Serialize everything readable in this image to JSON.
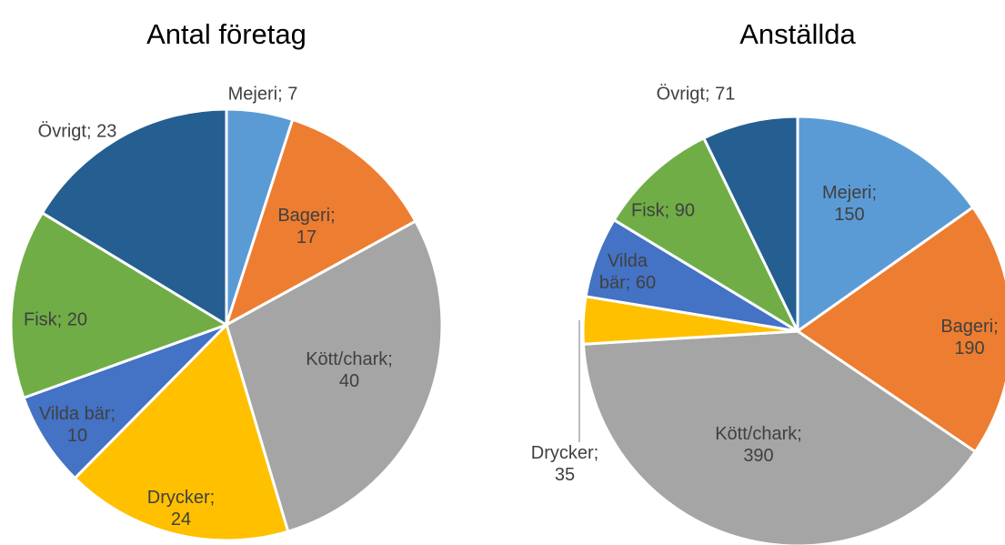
{
  "chart_data": [
    {
      "type": "pie",
      "title": "Antal företag",
      "categories": [
        "Mejeri",
        "Bageri",
        "Kött/chark",
        "Drycker",
        "Vilda bär",
        "Fisk",
        "Övrigt"
      ],
      "values": [
        7,
        17,
        40,
        24,
        10,
        20,
        23
      ],
      "value_labels": [
        "Mejeri; 7",
        "Bageri; 17",
        "Kött/chark; 40",
        "Drycker; 24",
        "Vilda bär; 10",
        "Fisk; 20",
        "Övrigt; 23"
      ],
      "colors": [
        "#5b9bd5",
        "#ed7d31",
        "#a5a5a5",
        "#ffc000",
        "#4472c4",
        "#70ad47",
        "#255e91"
      ]
    },
    {
      "type": "pie",
      "title": "Anställda",
      "categories": [
        "Mejeri",
        "Bageri",
        "Kött/chark",
        "Drycker",
        "Vilda bär",
        "Fisk",
        "Övrigt"
      ],
      "values": [
        150,
        190,
        390,
        35,
        60,
        90,
        71
      ],
      "value_labels": [
        "Mejeri; 150",
        "Bageri; 190",
        "Kött/chark; 390",
        "Drycker; 35",
        "Vilda bär; 60",
        "Fisk; 90",
        "Övrigt; 71"
      ],
      "colors": [
        "#5b9bd5",
        "#ed7d31",
        "#a5a5a5",
        "#ffc000",
        "#4472c4",
        "#70ad47",
        "#255e91"
      ]
    }
  ]
}
